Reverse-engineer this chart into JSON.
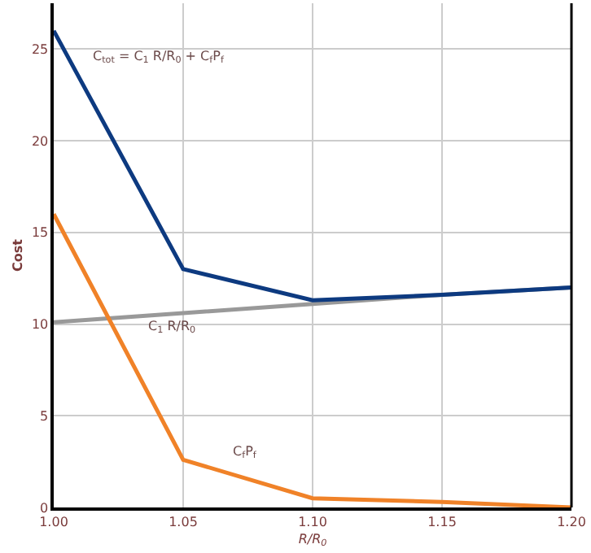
{
  "chart_data": {
    "type": "line",
    "xlabel": "R/R$_{0}$",
    "ylabel": "Cost",
    "x": [
      1.0,
      1.05,
      1.1,
      1.15,
      1.2
    ],
    "series": [
      {
        "name": "C$_{1}$ R/R$_{0}$",
        "color": "#999999",
        "values": [
          10.1,
          10.6,
          11.1,
          11.6,
          12.0
        ]
      },
      {
        "name": "C$_{tot}$ = C$_{1}$ R/R$_{0}$ + C$_{f}$P$_{f}$",
        "color": "#0d3a80",
        "values": [
          26,
          13,
          11.3,
          11.6,
          12.0
        ]
      },
      {
        "name": "C$_{f}$P$_{f}$",
        "color": "#f08228",
        "values": [
          16,
          2.6,
          0.5,
          0.3,
          0
        ]
      }
    ],
    "xlim": [
      1.0,
      1.2
    ],
    "xticks": [
      {
        "value": 1.0,
        "label": "1.00"
      },
      {
        "value": 1.05,
        "label": "1.05"
      },
      {
        "value": 1.1,
        "label": "1.10"
      },
      {
        "value": 1.15,
        "label": "1.15"
      },
      {
        "value": 1.2,
        "label": "1.20"
      }
    ],
    "ylim": [
      0,
      27.5
    ],
    "yticks": [
      0,
      5,
      10,
      15,
      20,
      25
    ],
    "grid": true,
    "marker": "none",
    "line_style": "solid",
    "legend": false
  }
}
